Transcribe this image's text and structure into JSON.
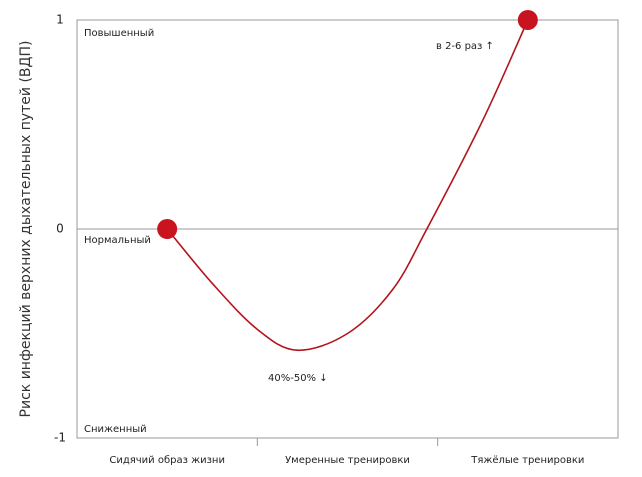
{
  "chart_data": {
    "type": "line",
    "y_label": "Риск инфекций верхних дыхательных путей (ВДП)",
    "categories": [
      "Сидячий образ жизни",
      "Умеренные тренировки",
      "Тяжёлые тренировки"
    ],
    "x": [
      0,
      0.25,
      0.5,
      0.72,
      1,
      1.25,
      1.44,
      1.75,
      2
    ],
    "values": [
      0,
      -0.26,
      -0.48,
      -0.58,
      -0.5,
      -0.29,
      0,
      0.52,
      1
    ],
    "color": "#b3141c",
    "xlim": [
      -0.5,
      2.5
    ],
    "xticks": [
      0,
      1,
      2
    ],
    "ylim": [
      -1,
      1
    ],
    "yticks": [
      1,
      0,
      -1
    ],
    "level_labels": [
      "Повышенный",
      "Нормальный",
      "Сниженный"
    ],
    "annotations": [
      "в 2-6 раз ↑",
      "40%-50% ↓"
    ]
  }
}
